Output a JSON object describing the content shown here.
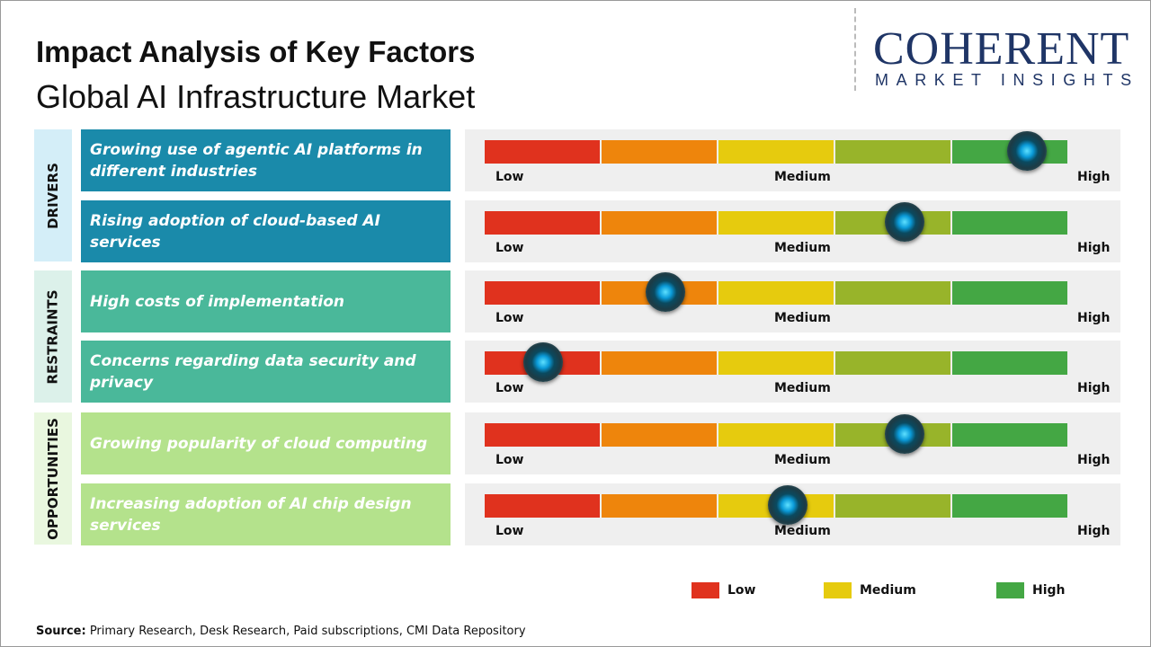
{
  "header": {
    "title": "Impact Analysis of Key Factors",
    "subtitle": "Global AI Infrastructure Market"
  },
  "logo": {
    "line1": "COHERENT",
    "line2": "MARKET INSIGHTS"
  },
  "categories": [
    {
      "label": "DRIVERS",
      "color": "#1a8aaa",
      "bg": "#d4eef8"
    },
    {
      "label": "RESTRAINTS",
      "color": "#4ab89a",
      "bg": "#dcf1ea"
    },
    {
      "label": "OPPORTUNITIES",
      "color": "#b4e28c",
      "bg": "#e9f7df"
    }
  ],
  "scale_labels": {
    "low": "Low",
    "medium": "Medium",
    "high": "High"
  },
  "segment_colors": [
    "#e0321e",
    "#ee850c",
    "#e6cb0e",
    "#98b42a",
    "#44a744"
  ],
  "chart_data": {
    "type": "gauge",
    "scale": [
      "Low",
      "Medium",
      "High"
    ],
    "factors": [
      {
        "category": "DRIVERS",
        "text": "Growing use of agentic AI platforms in different industries",
        "impact": 0.93
      },
      {
        "category": "DRIVERS",
        "text": "Rising adoption of cloud-based AI services",
        "impact": 0.72
      },
      {
        "category": "RESTRAINTS",
        "text": "High costs of implementation",
        "impact": 0.31
      },
      {
        "category": "RESTRAINTS",
        "text": "Concerns regarding data security and privacy",
        "impact": 0.1
      },
      {
        "category": "OPPORTUNITIES",
        "text": "Growing popularity of cloud computing",
        "impact": 0.72
      },
      {
        "category": "OPPORTUNITIES",
        "text": "Increasing adoption of AI chip design services",
        "impact": 0.52
      }
    ]
  },
  "legend": [
    {
      "label": "Low",
      "color": "#e0321e"
    },
    {
      "label": "Medium",
      "color": "#e6cb0e"
    },
    {
      "label": "High",
      "color": "#44a744"
    }
  ],
  "source": {
    "label": "Source:",
    "text": " Primary Research, Desk Research, Paid subscriptions, CMI Data Repository"
  }
}
